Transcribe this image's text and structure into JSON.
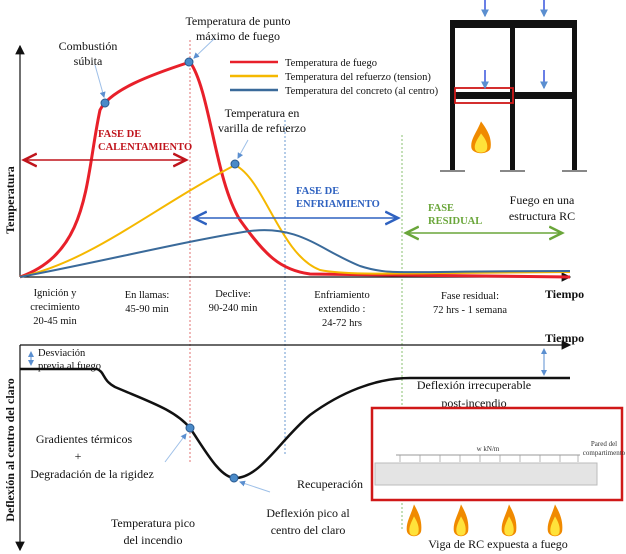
{
  "top_chart": {
    "ylabel": "Temperatura",
    "xlabel": "Tiempo",
    "legend": [
      {
        "label": "Temperatura de fuego",
        "color": "#e8202a"
      },
      {
        "label": "Temperatura del refuerzo (tension)",
        "color": "#f5b800"
      },
      {
        "label": "Temperatura del concreto (al centro)",
        "color": "#3a6a9a"
      }
    ],
    "annotations": {
      "flashover": [
        "Combustión",
        "súbita"
      ],
      "peak_fire": [
        "Temperatura de punto",
        "máximo de fuego"
      ],
      "rebar_peak": [
        "Temperatura en",
        "varilla de refuerzo"
      ]
    },
    "phases": {
      "heating": {
        "lines": [
          "FASE DE",
          "CALENTAMIENTO"
        ],
        "color": "#c0141c"
      },
      "cooling": {
        "lines": [
          "FASE DE",
          "ENFRIAMIENTO"
        ],
        "color": "#2f62c0"
      },
      "residual": {
        "lines": [
          "FASE",
          "RESIDUAL"
        ],
        "color": "#6aa63a"
      }
    },
    "stages": [
      [
        "Ignición y",
        "crecimiento",
        "20-45 min"
      ],
      [
        "En llamas:",
        "45-90 min"
      ],
      [
        "Declive:",
        "90-240 min"
      ],
      [
        "Enfriamiento",
        "extendido :",
        "24-72 hrs"
      ],
      [
        "Fase residual:",
        "72 hrs - 1 semana"
      ]
    ]
  },
  "structure": {
    "caption": [
      "Fuego en una",
      "estructura RC"
    ]
  },
  "bottom_chart": {
    "ylabel": "Deflexión al centro del claro",
    "xlabel": "Tiempo",
    "annotations": {
      "pre_fire": [
        "Desviación",
        "previa al fuego"
      ],
      "gradients": [
        "Gradientes térmicos",
        "+",
        "Degradación de la rigidez"
      ],
      "peak_temp": [
        "Temperatura pico",
        "del incendio"
      ],
      "peak_deflection": [
        "Deflexión pico al",
        "centro del claro"
      ],
      "recovery": "Recuperación",
      "irrecoverable": [
        "Deflexión irrecuperable",
        "post-incendio"
      ]
    }
  },
  "beam": {
    "load": "w kN/m",
    "wall": [
      "Pared del",
      "compartimento"
    ],
    "caption": "Viga de RC expuesta a fuego"
  }
}
